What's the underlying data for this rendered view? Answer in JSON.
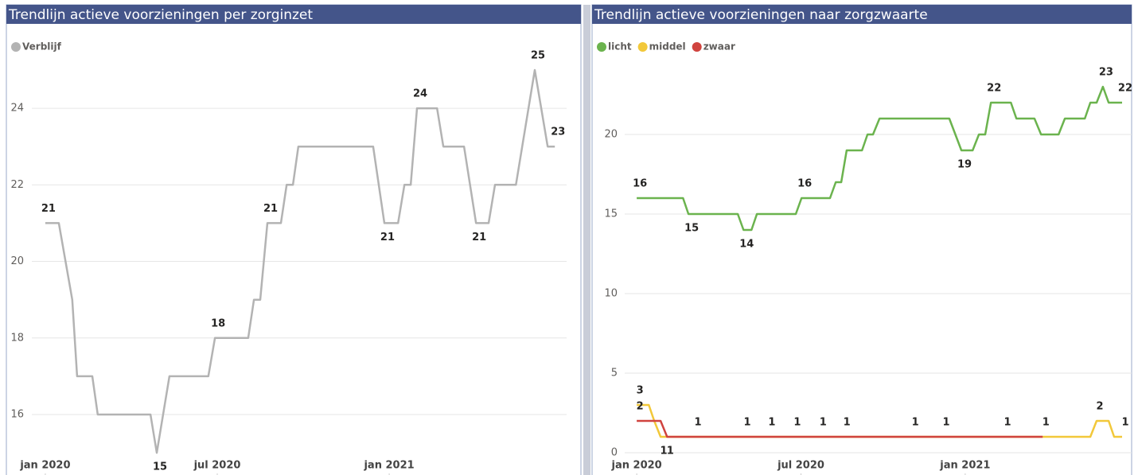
{
  "chart_data": [
    {
      "type": "line",
      "title": "Trendlijn actieve voorzieningen per zorginzet",
      "series": [
        {
          "name": "Verblijf",
          "color": "#b3b3b3",
          "x": [
            0,
            0.47,
            0.94,
            1.11,
            1.64,
            1.83,
            3.67,
            3.89,
            4.33,
            5.69,
            5.92,
            7.08,
            7.28,
            7.5,
            7.75,
            8.22,
            8.42,
            8.64,
            8.83,
            11.44,
            11.83,
            12.31,
            12.53,
            12.75,
            12.97,
            13.67,
            13.89,
            14.61,
            15.03,
            15.47,
            15.69,
            16.42,
            17.08,
            17.53,
            17.78
          ],
          "values": [
            21,
            21,
            19,
            17,
            17,
            16,
            16,
            15,
            17,
            17,
            18,
            18,
            19,
            19,
            21,
            21,
            22,
            22,
            23,
            23,
            21,
            21,
            22,
            22,
            24,
            24,
            23,
            23,
            21,
            21,
            22,
            22,
            25,
            23,
            23
          ],
          "value_labels": [
            "21",
            null,
            null,
            null,
            null,
            null,
            null,
            "15",
            null,
            null,
            "18",
            null,
            null,
            null,
            "21",
            null,
            null,
            null,
            null,
            null,
            "21",
            null,
            null,
            null,
            "24",
            null,
            null,
            null,
            "21",
            null,
            null,
            null,
            "25",
            null,
            "23"
          ]
        }
      ],
      "xlim": [
        -0.47,
        18.19
      ],
      "xticks": [
        {
          "value": 0,
          "label": "jan 2020"
        },
        {
          "value": 6,
          "label": "jul 2020"
        },
        {
          "value": 12,
          "label": "jan 2021"
        }
      ],
      "ylim": [
        14.42,
        25.27
      ],
      "yticks": [
        16,
        18,
        20,
        22,
        24
      ],
      "grid": true,
      "legend": "top-left"
    },
    {
      "type": "line",
      "title": "Trendlijn actieve voorzieningen naar zorgzwaarte",
      "series": [
        {
          "name": "licht",
          "color": "#6bb34e",
          "x": [
            0,
            1.69,
            1.89,
            3.69,
            3.9,
            4.19,
            4.39,
            5.81,
            6.02,
            7.06,
            7.27,
            7.47,
            7.67,
            8.23,
            8.43,
            8.63,
            8.87,
            11.42,
            11.86,
            12.27,
            12.5,
            12.73,
            12.94,
            13.67,
            13.87,
            14.53,
            14.77,
            15.41,
            15.64,
            16.37,
            16.57,
            16.8,
            17.03,
            17.24,
            17.73
          ],
          "values": [
            16,
            16,
            15,
            15,
            14,
            14,
            15,
            15,
            16,
            16,
            17,
            17,
            19,
            19,
            20,
            20,
            21,
            21,
            19,
            19,
            20,
            20,
            22,
            22,
            21,
            21,
            20,
            20,
            21,
            21,
            22,
            22,
            23,
            22,
            22
          ],
          "value_labels": [
            "16",
            null,
            "15",
            null,
            "14",
            null,
            null,
            null,
            "16",
            null,
            null,
            null,
            null,
            null,
            null,
            null,
            null,
            null,
            "19",
            null,
            null,
            null,
            "22",
            null,
            null,
            null,
            null,
            null,
            null,
            null,
            null,
            null,
            "23",
            null,
            "22"
          ]
        },
        {
          "name": "middel",
          "color": "#f2c83a",
          "x": [
            0,
            0.44,
            0.64,
            0.87,
            14.83,
            16.57,
            16.8,
            17.24,
            17.44,
            17.73
          ],
          "values": [
            3,
            3,
            2,
            1,
            1,
            1,
            2,
            2,
            1,
            1
          ],
          "value_labels": [
            "3",
            null,
            null,
            "1",
            null,
            null,
            "2",
            null,
            null,
            "1"
          ]
        },
        {
          "name": "zwaar",
          "color": "#d0433e",
          "x": [
            0,
            0.87,
            1.11,
            2.12,
            3.92,
            4.82,
            5.75,
            6.69,
            7.56,
            10.06,
            11.19,
            13.43,
            14.83
          ],
          "values": [
            2,
            2,
            1,
            1,
            1,
            1,
            1,
            1,
            1,
            1,
            1,
            1,
            1
          ],
          "value_labels": [
            "2",
            null,
            "1",
            "1",
            "1",
            "1",
            "1",
            "1",
            "1",
            "1",
            "1",
            "1",
            "1"
          ]
        }
      ],
      "xlim": [
        -0.44,
        18.08
      ],
      "xticks": [
        {
          "value": 0,
          "label": "jan 2020"
        },
        {
          "value": 6,
          "label": "jul 2020"
        },
        {
          "value": 12,
          "label": "jan 2021"
        }
      ],
      "ylim": [
        -1.4,
        24.7
      ],
      "yticks": [
        0,
        5,
        10,
        15,
        20
      ],
      "grid": true,
      "legend": "top-left"
    }
  ]
}
